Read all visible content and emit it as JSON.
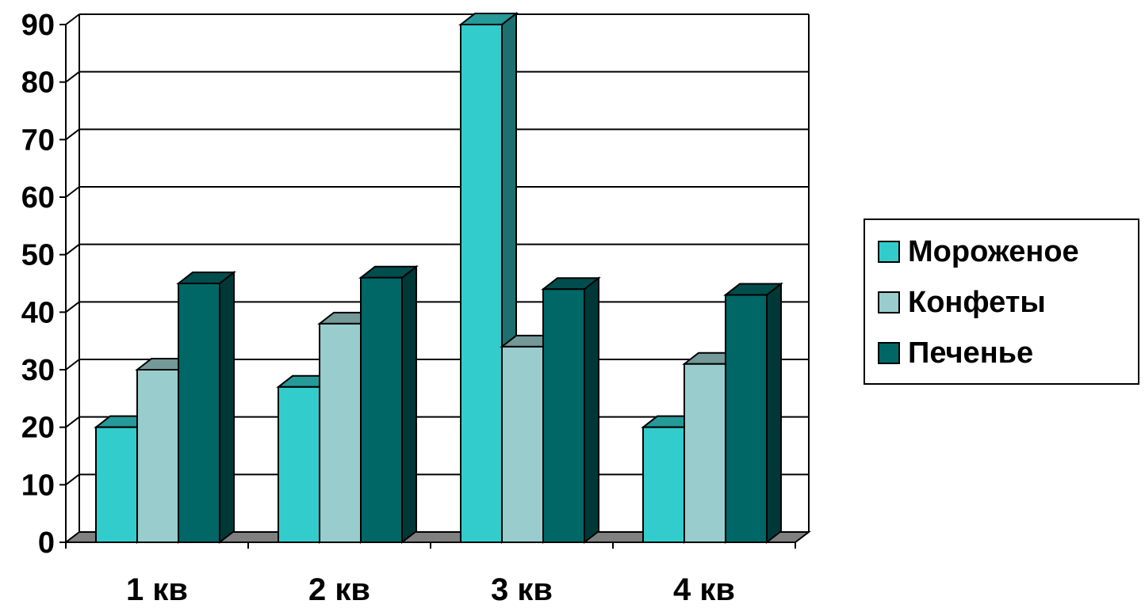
{
  "chart_data": {
    "type": "bar",
    "style": "3d-clustered-column",
    "categories": [
      "1 кв",
      "2 кв",
      "3 кв",
      "4 кв"
    ],
    "series": [
      {
        "name": "Мороженое",
        "values": [
          20,
          27,
          90,
          20
        ],
        "color": "#33CCCC"
      },
      {
        "name": "Конфеты",
        "values": [
          30,
          38,
          34,
          31
        ],
        "color": "#99CCCC"
      },
      {
        "name": "Печенье",
        "values": [
          45,
          46,
          44,
          43
        ],
        "color": "#006666"
      }
    ],
    "y_ticks": [
      "0",
      "10",
      "20",
      "30",
      "40",
      "50",
      "60",
      "70",
      "80",
      "90"
    ],
    "ylim": [
      0,
      90
    ],
    "grid": true,
    "legend_position": "right",
    "title": "",
    "xlabel": "",
    "ylabel": ""
  }
}
